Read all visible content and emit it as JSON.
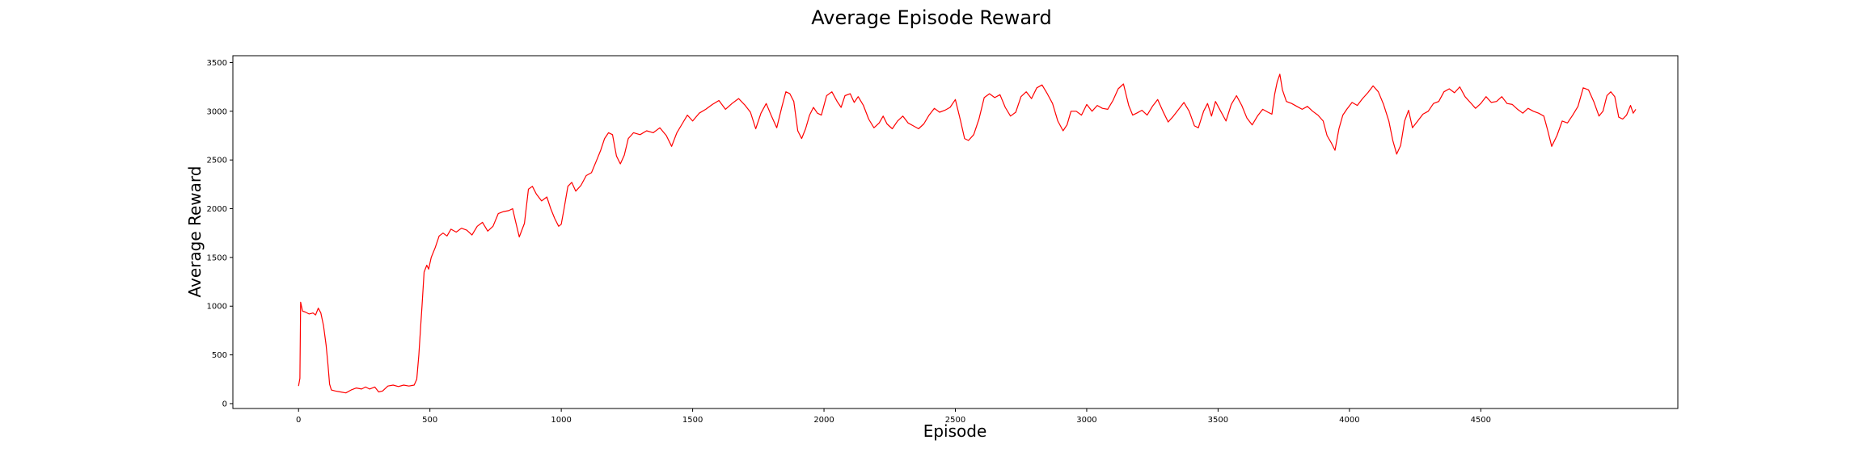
{
  "chart_data": {
    "type": "line",
    "title": "Average Episode Reward",
    "xlabel": "Episode",
    "ylabel": "Average Reward",
    "xlim": [
      -250,
      5250
    ],
    "ylim": [
      -50,
      3570
    ],
    "xticks": [
      0,
      500,
      1000,
      1500,
      2000,
      2500,
      3000,
      3500,
      4000,
      4500
    ],
    "xtick_labels": [
      "0",
      "500",
      "1000",
      "1500",
      "2000",
      "2500",
      "3000",
      "3500",
      "4000",
      "4500"
    ],
    "yticks": [
      0,
      500,
      1000,
      1500,
      2000,
      2500,
      3000,
      3500
    ],
    "ytick_labels": [
      "0",
      "500",
      "1000",
      "1500",
      "2000",
      "2500",
      "3000",
      "3500"
    ],
    "grid": false,
    "series": [
      {
        "color": "#ff0000",
        "points": [
          [
            0,
            180
          ],
          [
            5,
            260
          ],
          [
            8,
            1040
          ],
          [
            15,
            950
          ],
          [
            25,
            940
          ],
          [
            40,
            920
          ],
          [
            55,
            930
          ],
          [
            65,
            910
          ],
          [
            75,
            980
          ],
          [
            85,
            930
          ],
          [
            95,
            800
          ],
          [
            105,
            600
          ],
          [
            112,
            400
          ],
          [
            118,
            200
          ],
          [
            125,
            140
          ],
          [
            140,
            130
          ],
          [
            160,
            120
          ],
          [
            180,
            110
          ],
          [
            200,
            140
          ],
          [
            220,
            160
          ],
          [
            240,
            150
          ],
          [
            255,
            170
          ],
          [
            270,
            150
          ],
          [
            290,
            170
          ],
          [
            305,
            120
          ],
          [
            320,
            130
          ],
          [
            340,
            180
          ],
          [
            360,
            190
          ],
          [
            380,
            175
          ],
          [
            400,
            190
          ],
          [
            420,
            180
          ],
          [
            440,
            190
          ],
          [
            450,
            250
          ],
          [
            458,
            500
          ],
          [
            465,
            800
          ],
          [
            470,
            1000
          ],
          [
            478,
            1350
          ],
          [
            488,
            1420
          ],
          [
            495,
            1380
          ],
          [
            505,
            1500
          ],
          [
            520,
            1600
          ],
          [
            535,
            1720
          ],
          [
            550,
            1750
          ],
          [
            565,
            1720
          ],
          [
            580,
            1790
          ],
          [
            600,
            1760
          ],
          [
            620,
            1800
          ],
          [
            640,
            1780
          ],
          [
            660,
            1730
          ],
          [
            680,
            1820
          ],
          [
            700,
            1860
          ],
          [
            720,
            1770
          ],
          [
            740,
            1820
          ],
          [
            760,
            1950
          ],
          [
            780,
            1970
          ],
          [
            800,
            1980
          ],
          [
            815,
            2000
          ],
          [
            825,
            1880
          ],
          [
            840,
            1710
          ],
          [
            860,
            1850
          ],
          [
            875,
            2200
          ],
          [
            890,
            2230
          ],
          [
            905,
            2150
          ],
          [
            925,
            2080
          ],
          [
            945,
            2120
          ],
          [
            960,
            2000
          ],
          [
            975,
            1900
          ],
          [
            990,
            1820
          ],
          [
            1000,
            1840
          ],
          [
            1010,
            1990
          ],
          [
            1025,
            2230
          ],
          [
            1040,
            2270
          ],
          [
            1055,
            2180
          ],
          [
            1075,
            2240
          ],
          [
            1095,
            2340
          ],
          [
            1115,
            2370
          ],
          [
            1135,
            2500
          ],
          [
            1150,
            2600
          ],
          [
            1165,
            2720
          ],
          [
            1180,
            2780
          ],
          [
            1195,
            2760
          ],
          [
            1210,
            2540
          ],
          [
            1225,
            2460
          ],
          [
            1240,
            2550
          ],
          [
            1255,
            2720
          ],
          [
            1275,
            2780
          ],
          [
            1300,
            2760
          ],
          [
            1325,
            2800
          ],
          [
            1350,
            2780
          ],
          [
            1375,
            2830
          ],
          [
            1400,
            2750
          ],
          [
            1420,
            2640
          ],
          [
            1440,
            2780
          ],
          [
            1460,
            2870
          ],
          [
            1480,
            2960
          ],
          [
            1500,
            2900
          ],
          [
            1525,
            2980
          ],
          [
            1550,
            3020
          ],
          [
            1575,
            3070
          ],
          [
            1600,
            3110
          ],
          [
            1625,
            3020
          ],
          [
            1650,
            3080
          ],
          [
            1675,
            3130
          ],
          [
            1700,
            3060
          ],
          [
            1720,
            2990
          ],
          [
            1740,
            2820
          ],
          [
            1760,
            2980
          ],
          [
            1780,
            3080
          ],
          [
            1800,
            2950
          ],
          [
            1820,
            2830
          ],
          [
            1840,
            3050
          ],
          [
            1855,
            3200
          ],
          [
            1870,
            3180
          ],
          [
            1885,
            3100
          ],
          [
            1900,
            2800
          ],
          [
            1915,
            2720
          ],
          [
            1930,
            2820
          ],
          [
            1945,
            2960
          ],
          [
            1960,
            3040
          ],
          [
            1975,
            2980
          ],
          [
            1990,
            2960
          ],
          [
            2010,
            3160
          ],
          [
            2030,
            3200
          ],
          [
            2050,
            3100
          ],
          [
            2065,
            3040
          ],
          [
            2080,
            3160
          ],
          [
            2100,
            3180
          ],
          [
            2115,
            3090
          ],
          [
            2130,
            3150
          ],
          [
            2150,
            3060
          ],
          [
            2170,
            2920
          ],
          [
            2190,
            2830
          ],
          [
            2210,
            2880
          ],
          [
            2225,
            2950
          ],
          [
            2240,
            2870
          ],
          [
            2260,
            2820
          ],
          [
            2280,
            2900
          ],
          [
            2300,
            2950
          ],
          [
            2320,
            2880
          ],
          [
            2340,
            2850
          ],
          [
            2360,
            2820
          ],
          [
            2380,
            2870
          ],
          [
            2400,
            2960
          ],
          [
            2420,
            3030
          ],
          [
            2440,
            2990
          ],
          [
            2460,
            3010
          ],
          [
            2480,
            3040
          ],
          [
            2500,
            3120
          ],
          [
            2520,
            2900
          ],
          [
            2535,
            2720
          ],
          [
            2550,
            2700
          ],
          [
            2570,
            2760
          ],
          [
            2590,
            2920
          ],
          [
            2610,
            3140
          ],
          [
            2630,
            3180
          ],
          [
            2650,
            3140
          ],
          [
            2670,
            3170
          ],
          [
            2690,
            3040
          ],
          [
            2710,
            2950
          ],
          [
            2730,
            2990
          ],
          [
            2750,
            3150
          ],
          [
            2770,
            3200
          ],
          [
            2790,
            3130
          ],
          [
            2810,
            3240
          ],
          [
            2830,
            3270
          ],
          [
            2850,
            3180
          ],
          [
            2870,
            3080
          ],
          [
            2890,
            2900
          ],
          [
            2910,
            2800
          ],
          [
            2925,
            2860
          ],
          [
            2940,
            3000
          ],
          [
            2960,
            3000
          ],
          [
            2980,
            2960
          ],
          [
            3000,
            3070
          ],
          [
            3020,
            3000
          ],
          [
            3040,
            3060
          ],
          [
            3060,
            3030
          ],
          [
            3080,
            3020
          ],
          [
            3100,
            3110
          ],
          [
            3120,
            3230
          ],
          [
            3140,
            3280
          ],
          [
            3160,
            3060
          ],
          [
            3175,
            2960
          ],
          [
            3190,
            2980
          ],
          [
            3210,
            3010
          ],
          [
            3230,
            2960
          ],
          [
            3250,
            3050
          ],
          [
            3270,
            3120
          ],
          [
            3290,
            3000
          ],
          [
            3310,
            2890
          ],
          [
            3330,
            2950
          ],
          [
            3350,
            3020
          ],
          [
            3370,
            3090
          ],
          [
            3390,
            3000
          ],
          [
            3410,
            2850
          ],
          [
            3425,
            2830
          ],
          [
            3445,
            3000
          ],
          [
            3460,
            3080
          ],
          [
            3475,
            2950
          ],
          [
            3490,
            3100
          ],
          [
            3510,
            3000
          ],
          [
            3530,
            2900
          ],
          [
            3550,
            3070
          ],
          [
            3570,
            3160
          ],
          [
            3590,
            3060
          ],
          [
            3610,
            2930
          ],
          [
            3630,
            2860
          ],
          [
            3650,
            2950
          ],
          [
            3670,
            3020
          ],
          [
            3690,
            2990
          ],
          [
            3705,
            2970
          ],
          [
            3715,
            3170
          ],
          [
            3725,
            3300
          ],
          [
            3735,
            3380
          ],
          [
            3745,
            3220
          ],
          [
            3760,
            3100
          ],
          [
            3780,
            3080
          ],
          [
            3800,
            3050
          ],
          [
            3820,
            3020
          ],
          [
            3840,
            3050
          ],
          [
            3860,
            3000
          ],
          [
            3880,
            2960
          ],
          [
            3900,
            2900
          ],
          [
            3915,
            2750
          ],
          [
            3930,
            2680
          ],
          [
            3945,
            2600
          ],
          [
            3960,
            2820
          ],
          [
            3975,
            2960
          ],
          [
            3990,
            3020
          ],
          [
            4010,
            3090
          ],
          [
            4030,
            3060
          ],
          [
            4050,
            3130
          ],
          [
            4070,
            3190
          ],
          [
            4090,
            3260
          ],
          [
            4110,
            3200
          ],
          [
            4130,
            3070
          ],
          [
            4150,
            2900
          ],
          [
            4165,
            2700
          ],
          [
            4180,
            2560
          ],
          [
            4195,
            2650
          ],
          [
            4210,
            2900
          ],
          [
            4225,
            3010
          ],
          [
            4240,
            2830
          ],
          [
            4260,
            2900
          ],
          [
            4280,
            2970
          ],
          [
            4300,
            3000
          ],
          [
            4320,
            3080
          ],
          [
            4340,
            3100
          ],
          [
            4360,
            3200
          ],
          [
            4380,
            3230
          ],
          [
            4400,
            3190
          ],
          [
            4420,
            3250
          ],
          [
            4440,
            3150
          ],
          [
            4460,
            3090
          ],
          [
            4480,
            3030
          ],
          [
            4500,
            3080
          ],
          [
            4520,
            3150
          ],
          [
            4540,
            3090
          ],
          [
            4560,
            3100
          ],
          [
            4580,
            3150
          ],
          [
            4600,
            3080
          ],
          [
            4620,
            3070
          ],
          [
            4640,
            3020
          ],
          [
            4660,
            2980
          ],
          [
            4680,
            3030
          ],
          [
            4700,
            3000
          ],
          [
            4720,
            2980
          ],
          [
            4740,
            2950
          ],
          [
            4755,
            2800
          ],
          [
            4770,
            2640
          ],
          [
            4790,
            2750
          ],
          [
            4810,
            2900
          ],
          [
            4830,
            2880
          ],
          [
            4850,
            2960
          ],
          [
            4870,
            3050
          ],
          [
            4890,
            3240
          ],
          [
            4910,
            3220
          ],
          [
            4930,
            3100
          ],
          [
            4950,
            2950
          ],
          [
            4965,
            3000
          ],
          [
            4980,
            3160
          ],
          [
            4995,
            3200
          ],
          [
            5010,
            3150
          ],
          [
            5025,
            2940
          ],
          [
            5040,
            2920
          ],
          [
            5055,
            2960
          ],
          [
            5070,
            3060
          ],
          [
            5080,
            2980
          ],
          [
            5090,
            3020
          ]
        ]
      }
    ]
  }
}
